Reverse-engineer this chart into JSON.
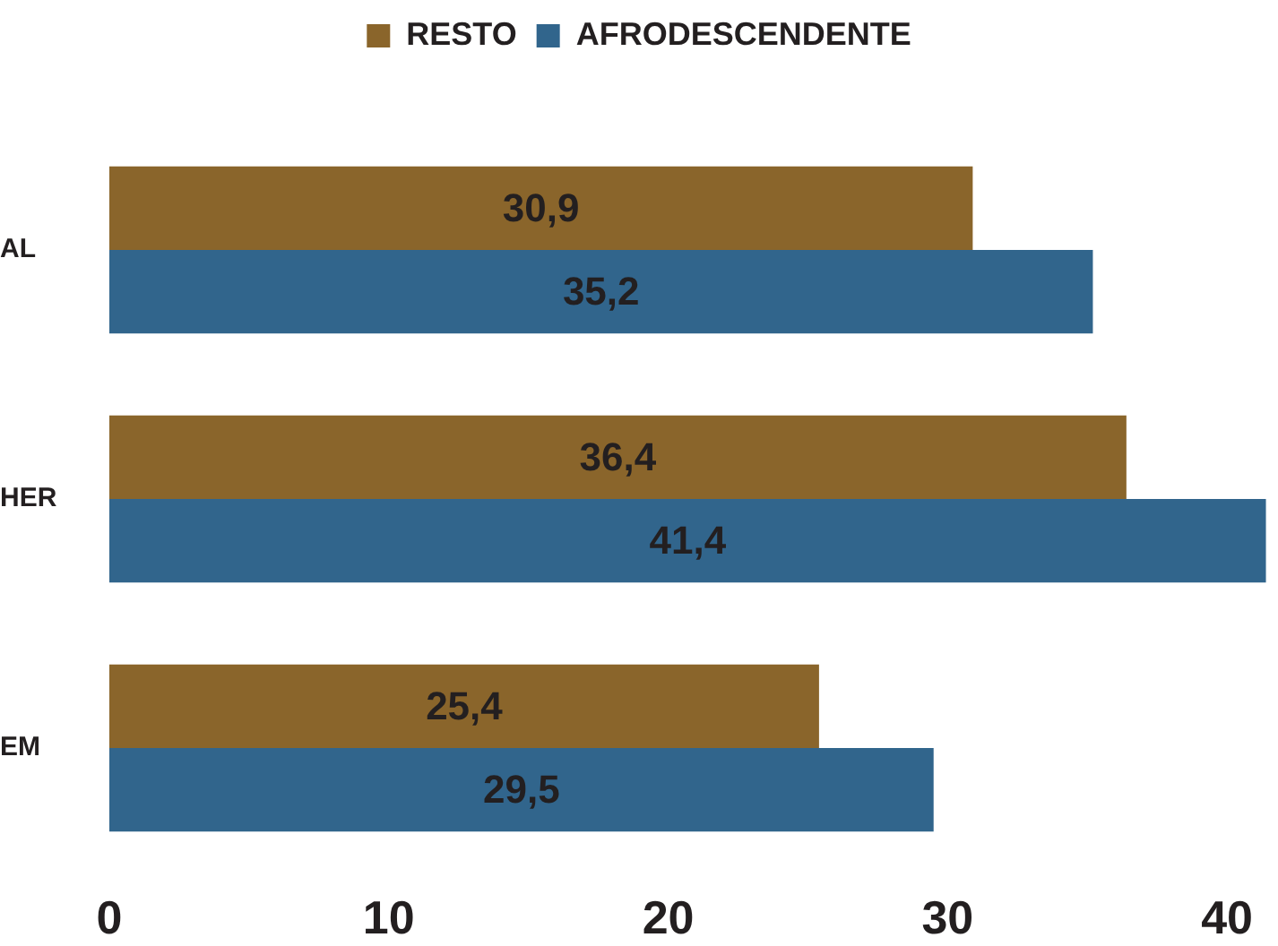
{
  "chart_data": {
    "type": "bar",
    "orientation": "horizontal",
    "categories": [
      "AL",
      "HER",
      "EM"
    ],
    "series": [
      {
        "name": "RESTO",
        "color": "#8a652b",
        "values": [
          30.9,
          36.4,
          25.4
        ],
        "value_labels": [
          "30,9",
          "36,4",
          "25,4"
        ]
      },
      {
        "name": "AFRODESCENDENTE",
        "color": "#31658c",
        "values": [
          35.2,
          41.4,
          29.5
        ],
        "value_labels": [
          "35,2",
          "41,4",
          "29,5"
        ]
      }
    ],
    "xlim": [
      0,
      41.4
    ],
    "xticks": [
      0,
      10,
      20,
      30,
      40
    ],
    "grid": false,
    "legend": "top"
  }
}
